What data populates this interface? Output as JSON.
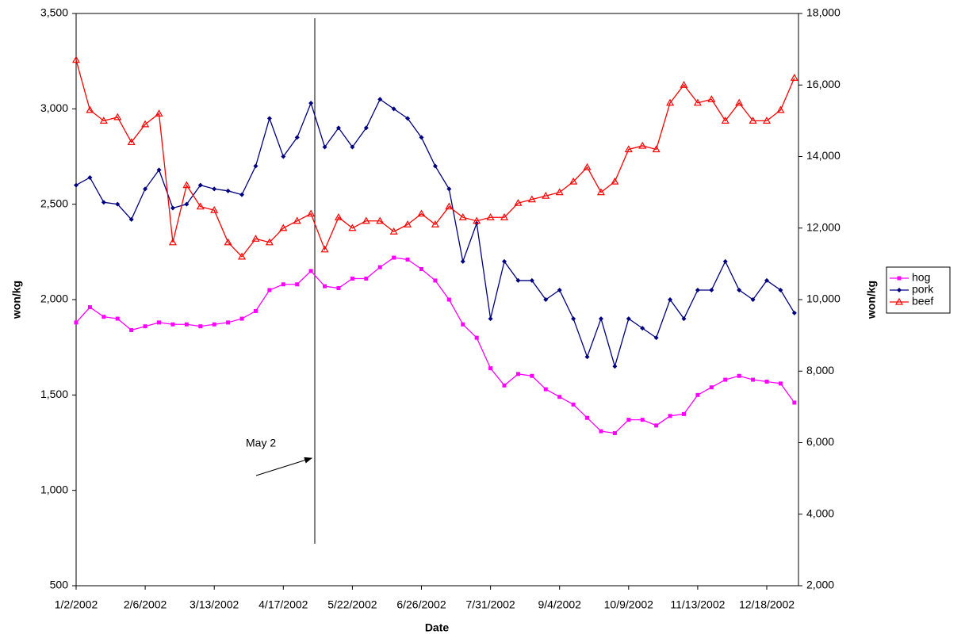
{
  "chart_data": {
    "type": "line",
    "x_label": "Date",
    "y_label": "won/kg",
    "y2_label": "won/kg",
    "annotation": "May 2",
    "categories": [
      "1/2/2002",
      null,
      null,
      null,
      null,
      "2/6/2002",
      null,
      null,
      null,
      null,
      "3/13/2002",
      null,
      null,
      null,
      null,
      "4/17/2002",
      null,
      null,
      null,
      null,
      "5/22/2002",
      null,
      null,
      null,
      null,
      "6/26/2002",
      null,
      null,
      null,
      null,
      "7/31/2002",
      null,
      null,
      null,
      null,
      "9/4/2002",
      null,
      null,
      null,
      null,
      "10/9/2002",
      null,
      null,
      null,
      null,
      "11/13/2002",
      null,
      null,
      null,
      null,
      "12/18/2002",
      null,
      null
    ],
    "series": [
      {
        "name": "hog",
        "color": "#ff00ff",
        "marker": "square",
        "values": [
          1880,
          1960,
          1910,
          1900,
          1840,
          1860,
          1880,
          1870,
          1870,
          1860,
          1870,
          1880,
          1900,
          1940,
          2050,
          2080,
          2080,
          2150,
          2070,
          2060,
          2110,
          2110,
          2170,
          2220,
          2210,
          2160,
          2100,
          2000,
          1870,
          1800,
          1640,
          1550,
          1610,
          1600,
          1530,
          1490,
          1450,
          1380,
          1310,
          1300,
          1370,
          1370,
          1340,
          1390,
          1400,
          1500,
          1540,
          1580,
          1600,
          1580,
          1570,
          1560,
          1460
        ]
      },
      {
        "name": "pork",
        "color": "#000080",
        "marker": "diamond",
        "values": [
          2600,
          2640,
          2510,
          2500,
          2420,
          2580,
          2680,
          2480,
          2500,
          2600,
          2580,
          2570,
          2550,
          2700,
          2950,
          2750,
          2850,
          3030,
          2800,
          2900,
          2800,
          2900,
          3050,
          3000,
          2950,
          2850,
          2700,
          2580,
          2200,
          2400,
          1900,
          2200,
          2100,
          2100,
          2000,
          2050,
          1900,
          1700,
          1900,
          1650,
          1900,
          1850,
          1800,
          2000,
          1900,
          2050,
          2050,
          2200,
          2050,
          2000,
          2100,
          2050,
          1930
        ]
      },
      {
        "name": "beef",
        "color": "#ff0000",
        "marker": "triangle",
        "axis": "y2",
        "values": [
          16700,
          15300,
          15000,
          15100,
          14400,
          14900,
          15200,
          11600,
          13200,
          12600,
          12500,
          11600,
          11200,
          11700,
          11600,
          12000,
          12200,
          12400,
          11400,
          12300,
          12000,
          12200,
          12200,
          11900,
          12100,
          12400,
          12100,
          12600,
          12300,
          12200,
          12300,
          12300,
          12700,
          12800,
          12900,
          13000,
          13300,
          13700,
          13000,
          13300,
          14200,
          14300,
          14200,
          15500,
          16000,
          15500,
          15600,
          15000,
          15500,
          15000,
          15000,
          15300,
          16200
        ]
      }
    ],
    "ylim": [
      500,
      3500
    ],
    "yticks": [
      500,
      {
        "value": 1000,
        "label": "1,000"
      },
      {
        "value": 1500,
        "label": "1,500"
      },
      {
        "value": 2000,
        "label": "2,000"
      },
      {
        "value": 2500,
        "label": "2,500"
      },
      {
        "value": 3000,
        "label": "3,000"
      },
      {
        "value": 3500,
        "label": "3,500"
      }
    ],
    "y2lim": [
      2000,
      18000
    ],
    "y2ticks": [
      {
        "value": 2000,
        "label": "2,000"
      },
      {
        "value": 4000,
        "label": "4,000"
      },
      {
        "value": 6000,
        "label": "6,000"
      },
      {
        "value": 8000,
        "label": "8,000"
      },
      {
        "value": 10000,
        "label": "10,000"
      },
      {
        "value": 12000,
        "label": "12,000"
      },
      {
        "value": 14000,
        "label": "14,000"
      },
      {
        "value": 16000,
        "label": "16,000"
      },
      {
        "value": 18000,
        "label": "18,000"
      }
    ],
    "legend": "right"
  }
}
